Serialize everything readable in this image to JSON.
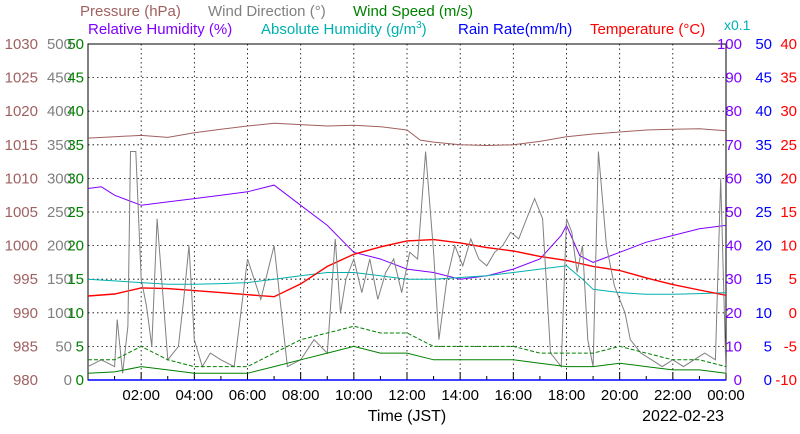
{
  "chart_data": {
    "type": "line",
    "xlabel": "Time (JST)",
    "date": "2022-02-23",
    "x_tick_labels": [
      "02:00",
      "04:00",
      "06:00",
      "08:00",
      "10:00",
      "12:00",
      "14:00",
      "16:00",
      "18:00",
      "20:00",
      "22:00",
      "00:00"
    ],
    "xlim_hours": [
      0,
      24
    ],
    "grid": true,
    "axes": [
      {
        "id": "pressure",
        "name": "Pressure",
        "unit": "(hPa)",
        "color": "#a06060",
        "side": "left",
        "ticks": [
          "1030",
          "1025",
          "1020",
          "1015",
          "1010",
          "1005",
          "1000",
          "995",
          "990",
          "985",
          "980"
        ],
        "lim": [
          980,
          1030
        ]
      },
      {
        "id": "wind_dir",
        "name": "Wind Direction",
        "unit": "(°)",
        "color": "#808080",
        "side": "left",
        "ticks": [
          "500",
          "450",
          "400",
          "350",
          "300",
          "250",
          "200",
          "150",
          "100",
          "50",
          "0"
        ],
        "lim": [
          0,
          500
        ]
      },
      {
        "id": "wind_speed",
        "name": "Wind Speed",
        "unit": "(m/s)",
        "color": "#008000",
        "side": "left",
        "ticks": [
          "50",
          "45",
          "40",
          "35",
          "30",
          "25",
          "20",
          "15",
          "10",
          "5",
          "0"
        ],
        "lim": [
          0,
          50
        ]
      },
      {
        "id": "rel_hum",
        "name": "Relative Humidity",
        "unit": "(%)",
        "color": "#8000ff",
        "side": "right",
        "ticks": [
          "100",
          "90",
          "80",
          "70",
          "60",
          "50",
          "40",
          "30",
          "20",
          "10",
          "0"
        ],
        "lim": [
          0,
          100
        ]
      },
      {
        "id": "rain",
        "name": "Rain Rate",
        "unit": "(mm/h)",
        "color": "#0000ff",
        "side": "right",
        "ticks": [
          "50",
          "45",
          "40",
          "35",
          "30",
          "25",
          "20",
          "15",
          "10",
          "5",
          "0"
        ],
        "lim": [
          0,
          50
        ]
      },
      {
        "id": "temp",
        "name": "Temperature",
        "unit": "(°C)",
        "color": "#ff0000",
        "side": "right",
        "ticks": [
          "40",
          "35",
          "30",
          "25",
          "20",
          "15",
          "10",
          "5",
          "0",
          "-5",
          "-10"
        ],
        "lim": [
          -10,
          40
        ]
      }
    ],
    "abs_humidity_label": {
      "name": "Absolute Humidity",
      "unit": "(g/m",
      "sup": "3",
      "close": ")",
      "scale_note": "x0.1",
      "color": "#00b0b0"
    },
    "series": [
      {
        "name": "Pressure",
        "axis": "pressure",
        "color": "#a06060",
        "x": [
          0,
          1,
          2,
          3,
          4,
          5,
          6,
          7,
          8,
          9,
          10,
          11,
          12,
          12.5,
          13,
          14,
          15,
          16,
          17,
          18,
          19,
          20,
          21,
          22,
          23,
          24
        ],
        "y": [
          1016,
          1016.2,
          1016.4,
          1016.1,
          1016.8,
          1017.3,
          1017.8,
          1018.2,
          1018.0,
          1017.8,
          1017.9,
          1017.7,
          1017.2,
          1015.7,
          1015.4,
          1015.0,
          1014.9,
          1015.0,
          1015.5,
          1016.2,
          1016.6,
          1016.9,
          1017.2,
          1017.3,
          1017.4,
          1017.1
        ]
      },
      {
        "name": "Relative Humidity",
        "axis": "rel_hum",
        "color": "#8000ff",
        "x": [
          0,
          0.5,
          1,
          2,
          3,
          4,
          5,
          6,
          7,
          8,
          9,
          10,
          11,
          12,
          13,
          14,
          15,
          16,
          17,
          17.8,
          18,
          18.5,
          19,
          20,
          21,
          22,
          23,
          24
        ],
        "y": [
          57,
          57.5,
          55,
          52,
          53,
          54,
          55,
          56,
          58,
          52,
          46,
          38,
          36,
          33,
          32,
          30,
          31,
          33,
          36,
          43,
          46,
          37,
          35,
          38,
          41,
          43,
          45,
          46
        ]
      },
      {
        "name": "Absolute Humidity (x0.1)",
        "axis": "rel_hum",
        "color": "#00b0b0",
        "x": [
          0,
          1,
          2,
          3,
          4,
          5,
          6,
          7,
          8,
          9,
          10,
          11,
          12,
          13,
          14,
          15,
          16,
          17,
          18,
          18.6,
          19,
          20,
          21,
          22,
          23,
          24
        ],
        "y": [
          30,
          29.5,
          29,
          28.5,
          28.5,
          28.7,
          29,
          30,
          31,
          32,
          32,
          31,
          30,
          30,
          30.5,
          31,
          32,
          33,
          34,
          30,
          27,
          26,
          25.5,
          25.5,
          25.7,
          26
        ]
      },
      {
        "name": "Temperature",
        "axis": "temp",
        "color": "#ff0000",
        "x": [
          0,
          1,
          2,
          3,
          4,
          5,
          6,
          7,
          8,
          9,
          10,
          11,
          12,
          13,
          14,
          15,
          16,
          17,
          18,
          19,
          20,
          21,
          22,
          23,
          24
        ],
        "y": [
          2.5,
          2.8,
          3.7,
          3.6,
          3.3,
          3.0,
          2.7,
          2.4,
          4.3,
          6.9,
          8.7,
          9.8,
          10.7,
          10.9,
          10.4,
          9.7,
          9.2,
          8.4,
          7.8,
          6.9,
          6.3,
          5.2,
          4.2,
          3.4,
          2.6
        ]
      },
      {
        "name": "Wind Direction",
        "axis": "wind_dir",
        "color": "#808080",
        "x": [
          0,
          0.5,
          1,
          1.1,
          1.3,
          1.5,
          1.6,
          1.8,
          2.0,
          2.2,
          2.4,
          2.6,
          3.0,
          3.4,
          3.6,
          3.8,
          4.0,
          4.3,
          4.6,
          5.0,
          5.5,
          6.0,
          6.5,
          7.0,
          7.5,
          8.0,
          8.5,
          9.0,
          9.3,
          9.5,
          9.7,
          10.0,
          10.3,
          10.6,
          10.9,
          11.2,
          11.5,
          11.8,
          12.1,
          12.4,
          12.7,
          13.0,
          13.2,
          13.5,
          13.8,
          14.1,
          14.4,
          14.7,
          15.0,
          15.3,
          15.6,
          15.9,
          16.2,
          16.5,
          16.8,
          17.1,
          17.4,
          17.6,
          17.8,
          18.0,
          18.2,
          18.4,
          18.6,
          18.8,
          19.0,
          19.2,
          19.5,
          19.8,
          20.0,
          20.2,
          20.4,
          20.8,
          21.2,
          21.6,
          22.0,
          22.4,
          22.8,
          23.2,
          23.6,
          23.8,
          24.0
        ],
        "y": [
          20,
          30,
          20,
          90,
          10,
          80,
          340,
          340,
          150,
          110,
          50,
          240,
          30,
          50,
          120,
          200,
          60,
          20,
          40,
          30,
          20,
          180,
          120,
          200,
          20,
          30,
          60,
          40,
          210,
          100,
          150,
          180,
          130,
          180,
          120,
          160,
          180,
          130,
          190,
          180,
          340,
          190,
          60,
          150,
          200,
          170,
          210,
          180,
          170,
          190,
          200,
          220,
          210,
          240,
          270,
          240,
          40,
          30,
          20,
          240,
          220,
          160,
          200,
          60,
          20,
          340,
          200,
          140,
          120,
          100,
          60,
          40,
          30,
          20,
          30,
          20,
          30,
          40,
          30,
          300,
          10
        ]
      },
      {
        "name": "Wind Speed",
        "axis": "wind_speed",
        "color": "#008000",
        "x": [
          0,
          1,
          2,
          3,
          4,
          5,
          6,
          7,
          8,
          9,
          10,
          11,
          12,
          13,
          14,
          15,
          16,
          17,
          18,
          19,
          20,
          21,
          22,
          23,
          24
        ],
        "y": [
          1,
          1.2,
          2,
          1.5,
          1,
          1,
          1,
          2,
          3,
          4,
          5,
          4,
          4,
          3,
          3,
          3,
          3,
          2.5,
          2,
          2,
          2.5,
          2,
          1.5,
          1.5,
          1
        ]
      },
      {
        "name": "Wind Speed (gust)",
        "axis": "wind_speed",
        "color": "#008000",
        "x": [
          0,
          1,
          2,
          3,
          4,
          5,
          6,
          7,
          8,
          9,
          10,
          11,
          12,
          13,
          14,
          15,
          16,
          17,
          18,
          19,
          20,
          21,
          22,
          23,
          24
        ],
        "y": [
          3,
          3,
          5,
          3,
          2,
          2,
          2,
          4,
          6,
          7,
          8,
          7,
          7,
          5,
          5,
          5,
          5,
          4,
          4,
          4,
          5,
          4,
          3,
          3,
          2
        ]
      },
      {
        "name": "Rain Rate",
        "axis": "rain",
        "color": "#0000ff",
        "x": [
          0,
          24
        ],
        "y": [
          0,
          0
        ]
      }
    ]
  }
}
